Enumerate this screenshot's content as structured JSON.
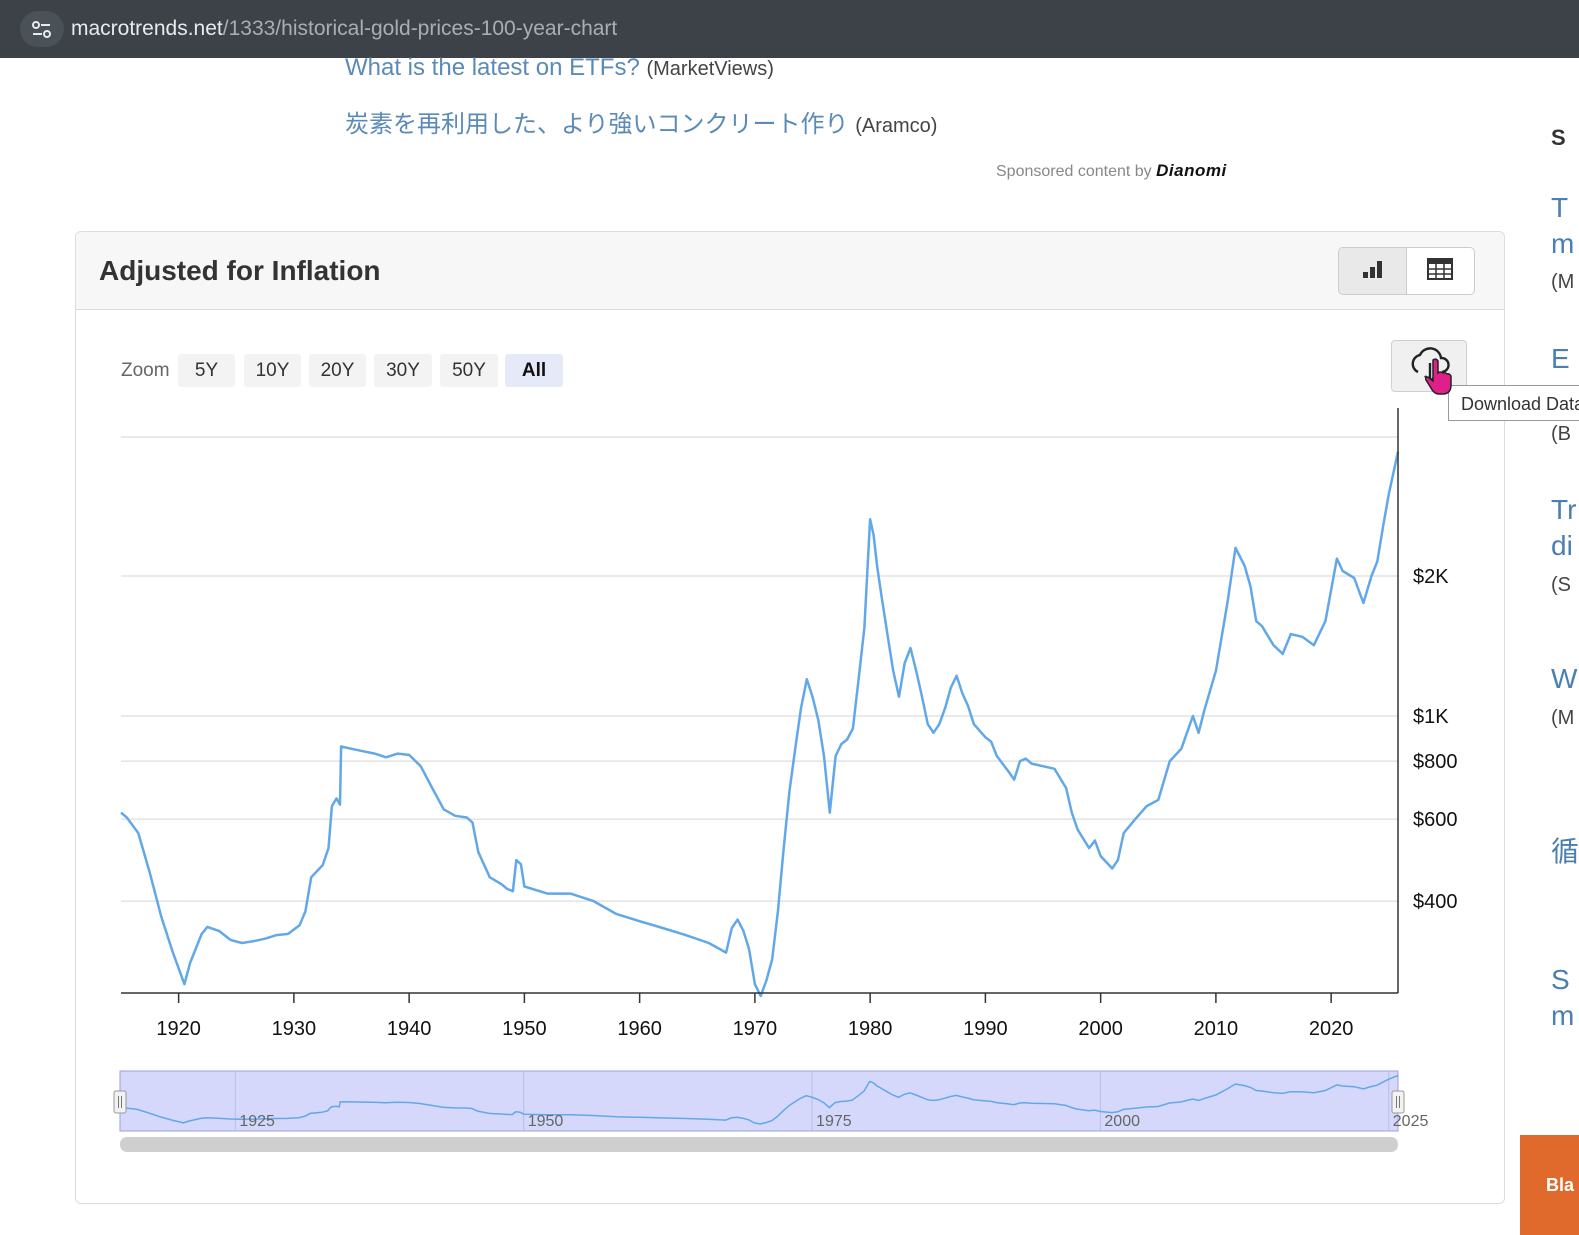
{
  "browser": {
    "url_domain": "macrotrends.net",
    "url_path": "/1333/historical-gold-prices-100-year-chart"
  },
  "sponsored": {
    "items": [
      {
        "title": "What is the latest on ETFs?",
        "source": "(MarketViews)"
      },
      {
        "title": "炭素を再利用した、より強いコンクリート作り",
        "source": "(Aramco)"
      }
    ],
    "by_label": "Sponsored content by",
    "brand": "Dianomi"
  },
  "sidebar": {
    "fragments": [
      "S",
      "T",
      "m",
      "(M",
      "E",
      "(B",
      "Tr",
      "di",
      "(S",
      "W",
      "(M",
      "循",
      "S",
      "m"
    ],
    "banner": "Bla"
  },
  "card": {
    "title": "Adjusted for Inflation",
    "view_toggle": {
      "chart_icon": "bar-chart-icon",
      "table_icon": "table-icon"
    }
  },
  "zoom": {
    "label": "Zoom",
    "options": [
      "5Y",
      "10Y",
      "20Y",
      "30Y",
      "50Y",
      "All"
    ],
    "selected": "All"
  },
  "download": {
    "icon": "cloud-download-icon",
    "tooltip": "Download Data"
  },
  "chart_data": {
    "type": "line",
    "title": "Adjusted for Inflation",
    "y_scale": "log",
    "y_ticks": [
      {
        "value": 2000,
        "label": "$2K"
      },
      {
        "value": 1000,
        "label": "$1K"
      },
      {
        "value": 800,
        "label": "$800"
      },
      {
        "value": 600,
        "label": "$600"
      },
      {
        "value": 400,
        "label": "$400"
      }
    ],
    "xlim": [
      1915,
      2025.8
    ],
    "ylim": [
      200,
      4000
    ],
    "x_ticks": [
      1920,
      1930,
      1940,
      1950,
      1960,
      1970,
      1980,
      1990,
      2000,
      2010,
      2020
    ],
    "line_color": "#62a8e8",
    "grid": true,
    "series": [
      {
        "points": [
          [
            1915.0,
            620
          ],
          [
            1915.5,
            605
          ],
          [
            1916.5,
            560
          ],
          [
            1917.5,
            460
          ],
          [
            1918.5,
            370
          ],
          [
            1919.5,
            310
          ],
          [
            1920.5,
            265
          ],
          [
            1921.0,
            295
          ],
          [
            1922.0,
            340
          ],
          [
            1922.5,
            352
          ],
          [
            1923.5,
            345
          ],
          [
            1924.5,
            330
          ],
          [
            1925.5,
            325
          ],
          [
            1926.5,
            328
          ],
          [
            1927.5,
            332
          ],
          [
            1928.5,
            338
          ],
          [
            1929.5,
            340
          ],
          [
            1930.5,
            355
          ],
          [
            1931.0,
            380
          ],
          [
            1931.5,
            450
          ],
          [
            1932.5,
            478
          ],
          [
            1933.0,
            520
          ],
          [
            1933.3,
            640
          ],
          [
            1933.7,
            665
          ],
          [
            1934.0,
            645
          ],
          [
            1934.1,
            860
          ],
          [
            1935.0,
            850
          ],
          [
            1936.0,
            840
          ],
          [
            1937.0,
            830
          ],
          [
            1938.0,
            815
          ],
          [
            1939.0,
            830
          ],
          [
            1940.0,
            825
          ],
          [
            1941.0,
            780
          ],
          [
            1942.0,
            700
          ],
          [
            1943.0,
            630
          ],
          [
            1944.0,
            610
          ],
          [
            1945.0,
            605
          ],
          [
            1945.5,
            590
          ],
          [
            1946.0,
            510
          ],
          [
            1947.0,
            450
          ],
          [
            1948.0,
            435
          ],
          [
            1948.5,
            425
          ],
          [
            1949.0,
            420
          ],
          [
            1949.3,
            490
          ],
          [
            1949.7,
            480
          ],
          [
            1950.0,
            430
          ],
          [
            1952.0,
            415
          ],
          [
            1954.0,
            415
          ],
          [
            1956.0,
            400
          ],
          [
            1958.0,
            375
          ],
          [
            1960.0,
            362
          ],
          [
            1962.0,
            350
          ],
          [
            1964.0,
            338
          ],
          [
            1966.0,
            325
          ],
          [
            1967.5,
            310
          ],
          [
            1968.0,
            350
          ],
          [
            1968.5,
            365
          ],
          [
            1969.0,
            345
          ],
          [
            1969.5,
            315
          ],
          [
            1970.0,
            265
          ],
          [
            1970.5,
            250
          ],
          [
            1971.0,
            270
          ],
          [
            1971.5,
            300
          ],
          [
            1972.0,
            380
          ],
          [
            1972.5,
            520
          ],
          [
            1973.0,
            690
          ],
          [
            1973.5,
            850
          ],
          [
            1974.0,
            1040
          ],
          [
            1974.5,
            1200
          ],
          [
            1975.0,
            1100
          ],
          [
            1975.5,
            980
          ],
          [
            1976.0,
            820
          ],
          [
            1976.5,
            620
          ],
          [
            1977.0,
            820
          ],
          [
            1977.5,
            870
          ],
          [
            1978.0,
            890
          ],
          [
            1978.5,
            940
          ],
          [
            1979.0,
            1200
          ],
          [
            1979.5,
            1550
          ],
          [
            1980.0,
            2650
          ],
          [
            1980.3,
            2450
          ],
          [
            1980.6,
            2100
          ],
          [
            1981.0,
            1800
          ],
          [
            1981.5,
            1500
          ],
          [
            1982.0,
            1250
          ],
          [
            1982.5,
            1100
          ],
          [
            1983.0,
            1300
          ],
          [
            1983.5,
            1400
          ],
          [
            1984.0,
            1250
          ],
          [
            1984.5,
            1100
          ],
          [
            1985.0,
            960
          ],
          [
            1985.5,
            920
          ],
          [
            1986.0,
            960
          ],
          [
            1986.5,
            1040
          ],
          [
            1987.0,
            1150
          ],
          [
            1987.5,
            1220
          ],
          [
            1988.0,
            1120
          ],
          [
            1988.5,
            1050
          ],
          [
            1989.0,
            960
          ],
          [
            1990.0,
            900
          ],
          [
            1990.5,
            880
          ],
          [
            1991.0,
            820
          ],
          [
            1992.0,
            760
          ],
          [
            1992.5,
            730
          ],
          [
            1993.0,
            800
          ],
          [
            1993.5,
            810
          ],
          [
            1994.0,
            790
          ],
          [
            1995.0,
            780
          ],
          [
            1996.0,
            770
          ],
          [
            1997.0,
            700
          ],
          [
            1997.5,
            620
          ],
          [
            1998.0,
            570
          ],
          [
            1999.0,
            520
          ],
          [
            1999.5,
            540
          ],
          [
            2000.0,
            500
          ],
          [
            2001.0,
            470
          ],
          [
            2001.5,
            490
          ],
          [
            2002.0,
            560
          ],
          [
            2003.0,
            600
          ],
          [
            2004.0,
            640
          ],
          [
            2005.0,
            660
          ],
          [
            2006.0,
            800
          ],
          [
            2007.0,
            850
          ],
          [
            2008.0,
            1000
          ],
          [
            2008.5,
            920
          ],
          [
            2009.0,
            1030
          ],
          [
            2010.0,
            1250
          ],
          [
            2011.0,
            1750
          ],
          [
            2011.7,
            2300
          ],
          [
            2012.5,
            2100
          ],
          [
            2013.0,
            1900
          ],
          [
            2013.5,
            1600
          ],
          [
            2014.0,
            1560
          ],
          [
            2015.0,
            1420
          ],
          [
            2015.8,
            1360
          ],
          [
            2016.5,
            1500
          ],
          [
            2017.5,
            1480
          ],
          [
            2018.5,
            1420
          ],
          [
            2019.5,
            1600
          ],
          [
            2020.5,
            2180
          ],
          [
            2021.0,
            2050
          ],
          [
            2022.0,
            1980
          ],
          [
            2022.8,
            1750
          ],
          [
            2023.5,
            2000
          ],
          [
            2024.0,
            2150
          ],
          [
            2024.5,
            2550
          ],
          [
            2025.0,
            3000
          ],
          [
            2025.8,
            3700
          ]
        ]
      }
    ],
    "navigator": {
      "labels": [
        "1925",
        "1950",
        "1975",
        "2000",
        "2025"
      ]
    }
  }
}
